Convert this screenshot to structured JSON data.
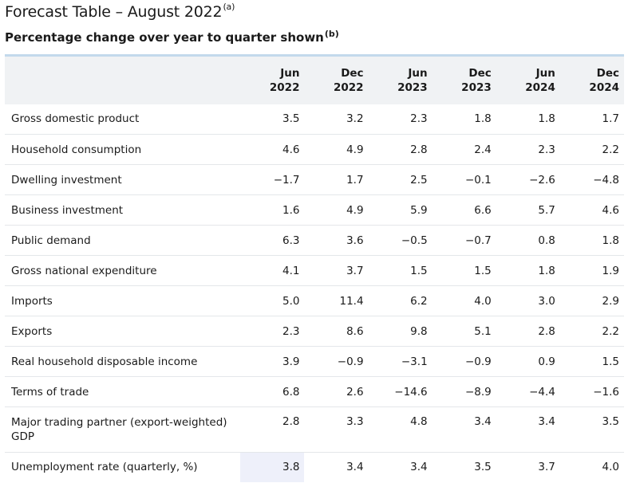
{
  "title": {
    "text": "Forecast Table – August 2022",
    "note": "(a)"
  },
  "subtitle": {
    "text": "Percentage change over year to quarter shown",
    "note": "(b)"
  },
  "columns": [
    {
      "month": "Jun",
      "year": "2022"
    },
    {
      "month": "Dec",
      "year": "2022"
    },
    {
      "month": "Jun",
      "year": "2023"
    },
    {
      "month": "Dec",
      "year": "2023"
    },
    {
      "month": "Jun",
      "year": "2024"
    },
    {
      "month": "Dec",
      "year": "2024"
    }
  ],
  "rows": [
    {
      "label": "Gross domestic product",
      "values": [
        "3.5",
        "3.2",
        "2.3",
        "1.8",
        "1.8",
        "1.7"
      ]
    },
    {
      "label": "Household consumption",
      "values": [
        "4.6",
        "4.9",
        "2.8",
        "2.4",
        "2.3",
        "2.2"
      ]
    },
    {
      "label": "Dwelling investment",
      "values": [
        "−1.7",
        "1.7",
        "2.5",
        "−0.1",
        "−2.6",
        "−4.8"
      ]
    },
    {
      "label": "Business investment",
      "values": [
        "1.6",
        "4.9",
        "5.9",
        "6.6",
        "5.7",
        "4.6"
      ]
    },
    {
      "label": "Public demand",
      "values": [
        "6.3",
        "3.6",
        "−0.5",
        "−0.7",
        "0.8",
        "1.8"
      ]
    },
    {
      "label": "Gross national expenditure",
      "values": [
        "4.1",
        "3.7",
        "1.5",
        "1.5",
        "1.8",
        "1.9"
      ]
    },
    {
      "label": "Imports",
      "values": [
        "5.0",
        "11.4",
        "6.2",
        "4.0",
        "3.0",
        "2.9"
      ]
    },
    {
      "label": "Exports",
      "values": [
        "2.3",
        "8.6",
        "9.8",
        "5.1",
        "2.8",
        "2.2"
      ]
    },
    {
      "label": "Real household disposable income",
      "values": [
        "3.9",
        "−0.9",
        "−3.1",
        "−0.9",
        "0.9",
        "1.5"
      ]
    },
    {
      "label": "Terms of trade",
      "values": [
        "6.8",
        "2.6",
        "−14.6",
        "−8.9",
        "−4.4",
        "−1.6"
      ]
    },
    {
      "label": "Major trading partner (export-weighted) GDP",
      "values": [
        "2.8",
        "3.3",
        "4.8",
        "3.4",
        "3.4",
        "3.5"
      ]
    },
    {
      "label": "Unemployment rate (quarterly, %)",
      "values": [
        "3.8",
        "3.4",
        "3.4",
        "3.5",
        "3.7",
        "4.0"
      ]
    }
  ]
}
